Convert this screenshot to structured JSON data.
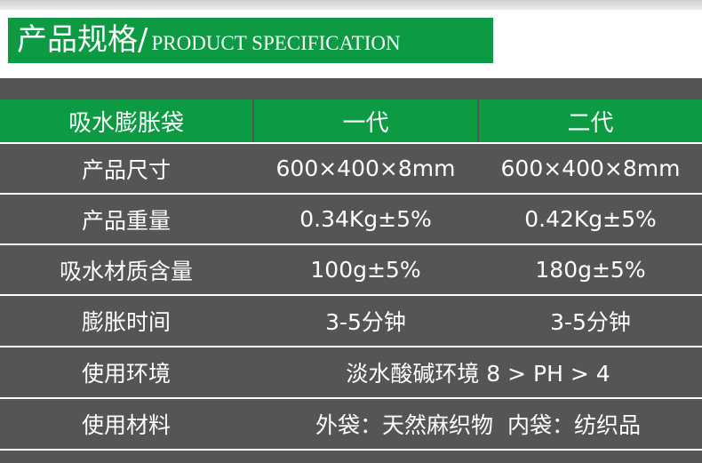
{
  "title": {
    "cn": "产品规格/",
    "en": "PRODUCT SPECIFICATION"
  },
  "colors": {
    "green": "#0c9a43",
    "dark": "#555555"
  },
  "table": {
    "headers": [
      "吸水膨胀袋",
      "一代",
      "二代"
    ],
    "rows": [
      [
        "产品尺寸",
        "600×400×8mm",
        "600×400×8mm"
      ],
      [
        "产品重量",
        "0.34Kg±5%",
        "0.42Kg±5%"
      ],
      [
        "吸水材质含量",
        "100g±5%",
        "180g±5%"
      ],
      [
        "膨胀时间",
        "3-5分钟",
        "3-5分钟"
      ],
      [
        "使用环境",
        "淡水酸碱环境 8 > PH > 4"
      ],
      [
        "使用材料",
        "外袋：天然麻织物  内袋：纺织品"
      ]
    ]
  }
}
